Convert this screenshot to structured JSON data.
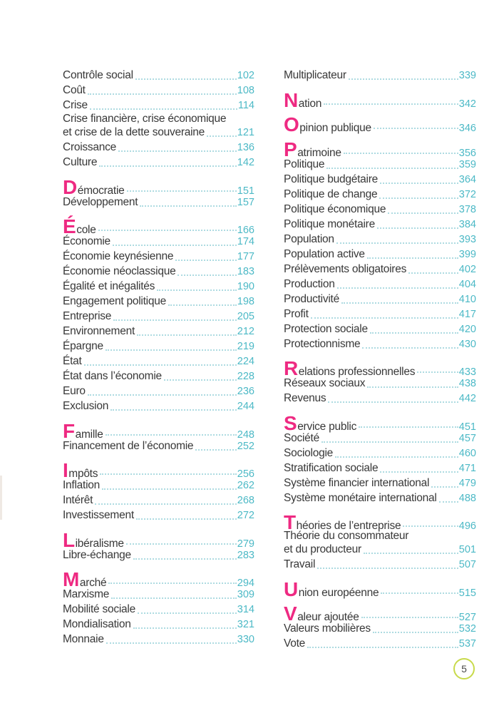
{
  "page": {
    "number": "5"
  },
  "colors": {
    "text": "#383838",
    "accent_pink": "#ee2a82",
    "page_number_teal": "#4cb9c6",
    "leader_dots_teal": "#aedbe1",
    "folio_circle_green": "#c8da4b"
  },
  "toc": {
    "columns": [
      {
        "sections": [
          {
            "entries": [
              {
                "label": "Contrôle social",
                "page": "102"
              },
              {
                "label": "Coût",
                "page": "108"
              },
              {
                "label": "Crise",
                "page": "114"
              },
              {
                "label": "Crise financière, crise économique",
                "label2": "et crise de la dette souveraine",
                "page": "121"
              },
              {
                "label": "Croissance",
                "page": "136"
              },
              {
                "label": "Culture",
                "page": "142"
              }
            ]
          },
          {
            "entries": [
              {
                "label": "Démocratie",
                "lead": true,
                "page": "151"
              },
              {
                "label": "Développement",
                "page": "157"
              }
            ]
          },
          {
            "entries": [
              {
                "label": "École",
                "lead": true,
                "page": "166"
              },
              {
                "label": "Économie",
                "page": "174"
              },
              {
                "label": "Économie keynésienne",
                "page": "177"
              },
              {
                "label": "Économie néoclassique",
                "page": "183"
              },
              {
                "label": "Égalité et inégalités",
                "page": "190"
              },
              {
                "label": "Engagement politique",
                "page": "198"
              },
              {
                "label": "Entreprise",
                "page": "205"
              },
              {
                "label": "Environnement",
                "page": "212"
              },
              {
                "label": "Épargne",
                "page": "219"
              },
              {
                "label": "État",
                "page": "224"
              },
              {
                "label": "État dans l’économie",
                "page": "228"
              },
              {
                "label": "Euro",
                "page": "236"
              },
              {
                "label": "Exclusion",
                "page": "244"
              }
            ]
          },
          {
            "entries": [
              {
                "label": "Famille",
                "lead": true,
                "page": "248"
              },
              {
                "label": "Financement de l’économie",
                "page": "252"
              }
            ]
          },
          {
            "entries": [
              {
                "label": "Impôts",
                "lead": true,
                "page": "256"
              },
              {
                "label": "Inflation",
                "page": "262"
              },
              {
                "label": "Intérêt",
                "page": "268"
              },
              {
                "label": "Investissement",
                "page": "272"
              }
            ]
          },
          {
            "entries": [
              {
                "label": "Libéralisme",
                "lead": true,
                "page": "279"
              },
              {
                "label": "Libre-échange",
                "page": "283"
              }
            ]
          },
          {
            "entries": [
              {
                "label": "Marché",
                "lead": true,
                "page": "294"
              },
              {
                "label": "Marxisme",
                "page": "309"
              },
              {
                "label": "Mobilité sociale",
                "page": "314"
              },
              {
                "label": "Mondialisation",
                "page": "321"
              },
              {
                "label": "Monnaie",
                "page": "330"
              }
            ]
          }
        ]
      },
      {
        "sections": [
          {
            "entries": [
              {
                "label": "Multiplicateur",
                "page": "339"
              }
            ]
          },
          {
            "entries": [
              {
                "label": "Nation",
                "lead": true,
                "page": "342"
              }
            ]
          },
          {
            "entries": [
              {
                "label": "Opinion publique",
                "lead": true,
                "page": "346"
              }
            ]
          },
          {
            "entries": [
              {
                "label": "Patrimoine",
                "lead": true,
                "page": "356"
              },
              {
                "label": "Politique",
                "page": "359"
              },
              {
                "label": "Politique budgétaire",
                "page": "364"
              },
              {
                "label": "Politique de change",
                "page": "372"
              },
              {
                "label": "Politique économique",
                "page": "378"
              },
              {
                "label": "Politique monétaire",
                "page": "384"
              },
              {
                "label": "Population",
                "page": "393"
              },
              {
                "label": "Population active",
                "page": "399"
              },
              {
                "label": "Prélèvements obligatoires",
                "page": "402"
              },
              {
                "label": "Production",
                "page": "404"
              },
              {
                "label": "Productivité",
                "page": "410"
              },
              {
                "label": "Profit",
                "page": "417"
              },
              {
                "label": "Protection sociale",
                "page": "420"
              },
              {
                "label": "Protectionnisme",
                "page": "430"
              }
            ]
          },
          {
            "entries": [
              {
                "label": "Relations professionnelles",
                "lead": true,
                "page": "433"
              },
              {
                "label": "Réseaux sociaux",
                "page": "438"
              },
              {
                "label": "Revenus",
                "page": "442"
              }
            ]
          },
          {
            "entries": [
              {
                "label": "Service public",
                "lead": true,
                "page": "451"
              },
              {
                "label": "Société",
                "page": "457"
              },
              {
                "label": "Sociologie",
                "page": "460"
              },
              {
                "label": "Stratification sociale",
                "page": "471"
              },
              {
                "label": "Système financier international",
                "page": "479"
              },
              {
                "label": "Système monétaire international",
                "page": "488"
              }
            ]
          },
          {
            "entries": [
              {
                "label": "Théories de l’entreprise",
                "lead": true,
                "page": "496"
              },
              {
                "label": "Théorie du consommateur",
                "label2": "et du producteur",
                "page": "501"
              },
              {
                "label": "Travail",
                "page": "507"
              }
            ]
          },
          {
            "entries": [
              {
                "label": "Union européenne",
                "lead": true,
                "page": "515"
              }
            ]
          },
          {
            "entries": [
              {
                "label": "Valeur ajoutée",
                "lead": true,
                "page": "527"
              },
              {
                "label": "Valeurs mobilières",
                "page": "532"
              },
              {
                "label": "Vote",
                "page": "537"
              }
            ]
          }
        ]
      }
    ]
  }
}
